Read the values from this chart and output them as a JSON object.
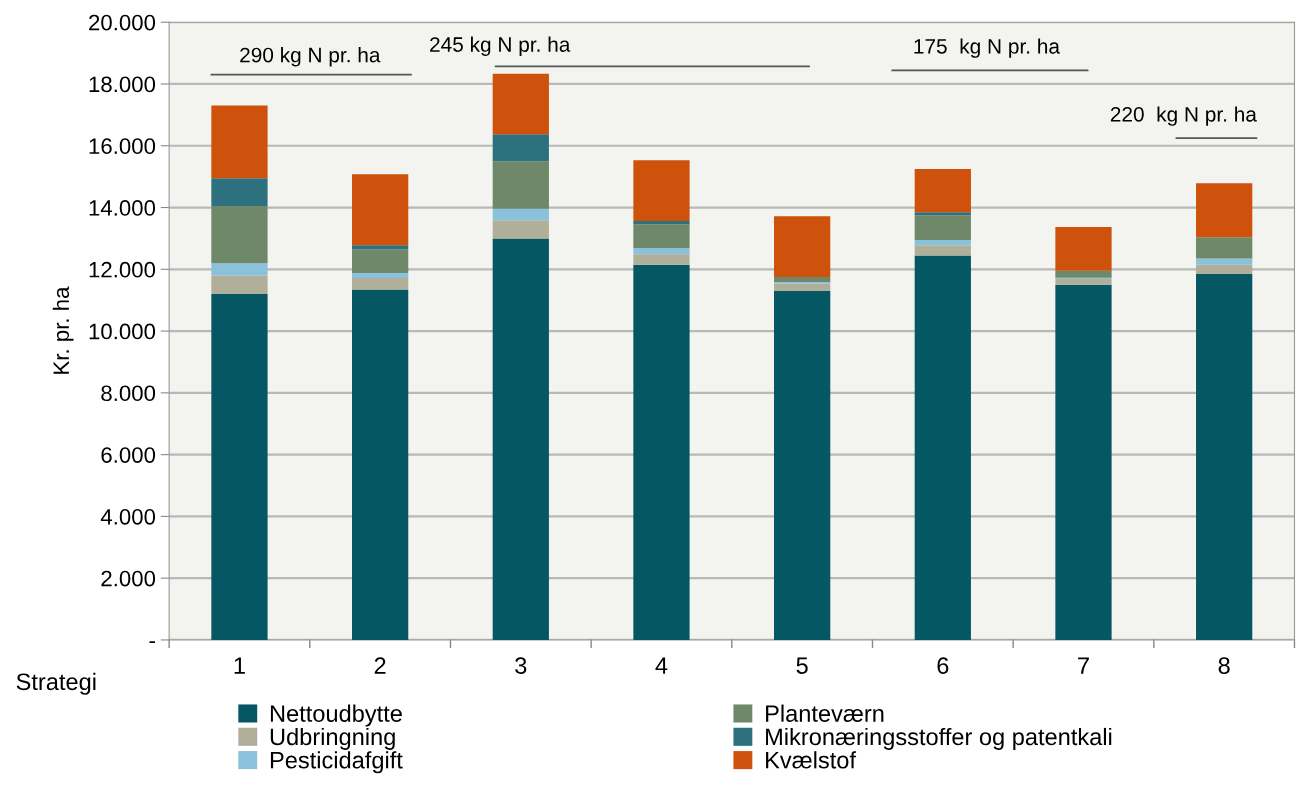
{
  "chart_data": {
    "type": "bar",
    "stacked": true,
    "xlabel": "Strategi",
    "ylabel": "Kr. pr. ha",
    "categories": [
      "1",
      "2",
      "3",
      "4",
      "5",
      "6",
      "7",
      "8"
    ],
    "series": [
      {
        "name": "Nettoudbytte",
        "color": "#055863",
        "values": [
          11200,
          11350,
          13000,
          12150,
          11300,
          12450,
          11500,
          11850
        ]
      },
      {
        "name": "Udbringning",
        "color": "#b0b09a",
        "values": [
          600,
          370,
          590,
          340,
          240,
          330,
          190,
          300
        ]
      },
      {
        "name": "Pesticidafgift",
        "color": "#8ac2dc",
        "values": [
          400,
          160,
          370,
          190,
          50,
          170,
          40,
          200
        ]
      },
      {
        "name": "Planteværn",
        "color": "#6e8869",
        "values": [
          1850,
          770,
          1540,
          780,
          160,
          800,
          220,
          690
        ]
      },
      {
        "name": "Mikronæringsstoffer og patentkali",
        "color": "#2d717f",
        "values": [
          900,
          130,
          870,
          100,
          0,
          100,
          0,
          0
        ]
      },
      {
        "name": "Kvælstof",
        "color": "#cf520c",
        "values": [
          2350,
          2300,
          1960,
          1970,
          1970,
          1400,
          1420,
          1750
        ]
      }
    ],
    "ylim": [
      0,
      20000
    ],
    "yticks": [
      {
        "value": 0,
        "label": "-"
      },
      {
        "value": 2000,
        "label": "2.000"
      },
      {
        "value": 4000,
        "label": "4.000"
      },
      {
        "value": 6000,
        "label": "6.000"
      },
      {
        "value": 8000,
        "label": "8.000"
      },
      {
        "value": 10000,
        "label": "10.000"
      },
      {
        "value": 12000,
        "label": "12.000"
      },
      {
        "value": 14000,
        "label": "14.000"
      },
      {
        "value": 16000,
        "label": "16.000"
      },
      {
        "value": 18000,
        "label": "18.000"
      },
      {
        "value": 20000,
        "label": "20.000"
      }
    ],
    "grid": "y",
    "legend": "bottom",
    "annotations": [
      "290 kg N pr. ha",
      "245 kg N pr. ha",
      "175  kg N pr. ha",
      "220  kg N pr. ha"
    ]
  }
}
